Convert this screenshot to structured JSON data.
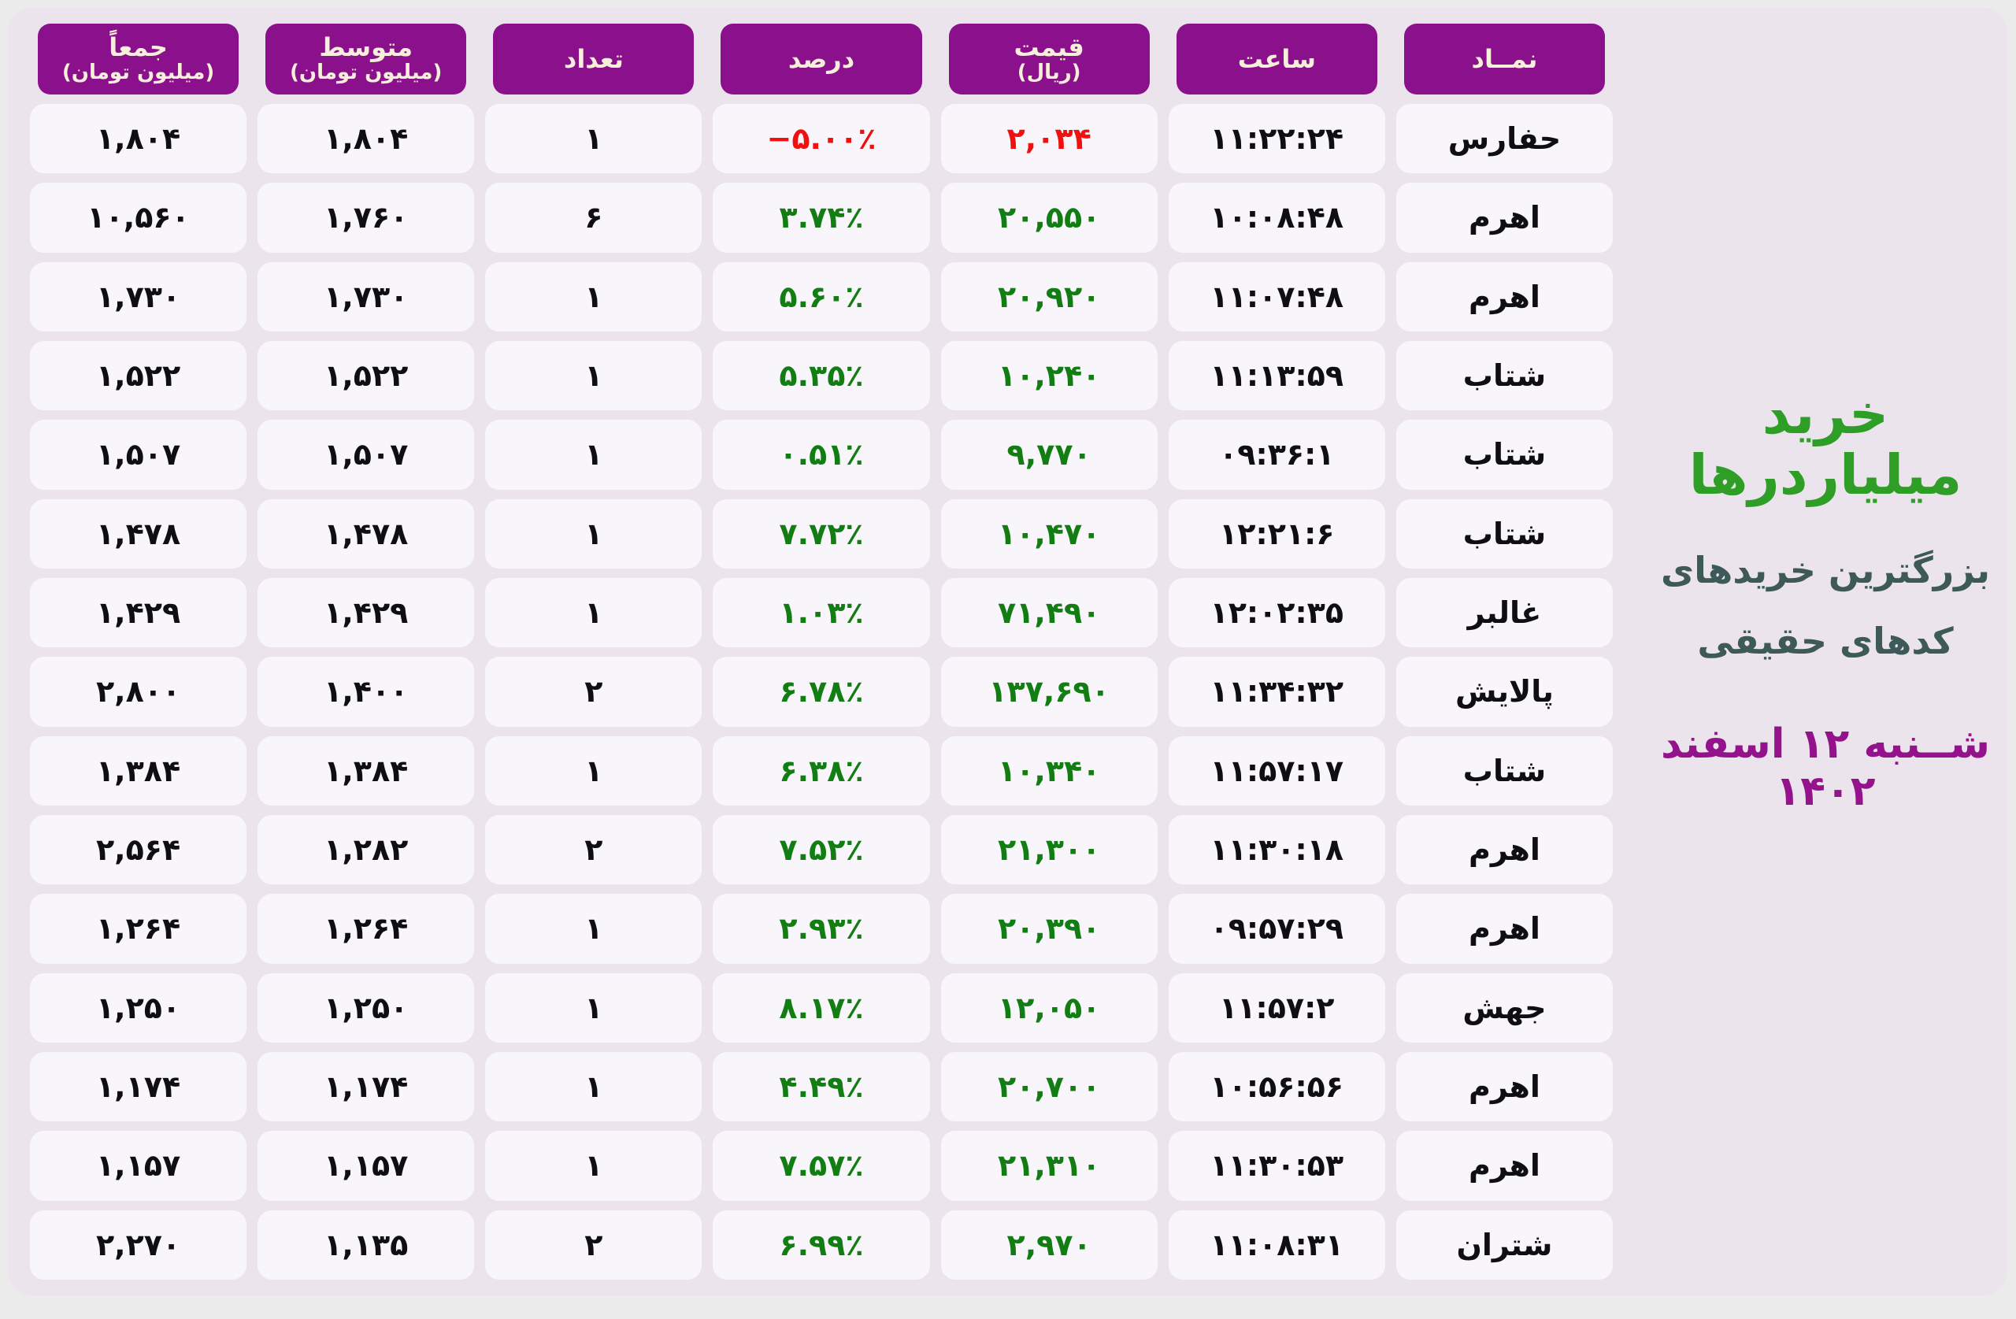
{
  "colors": {
    "page_bg": "#ebebeb",
    "panel_bg": "#ece4ed",
    "header_bg": "#8b108b",
    "header_text": "#f6efd9",
    "cell_bg": "#f8f6fb",
    "text_dark": "#0e0e13",
    "up_color": "#127d12",
    "down_color": "#f01010",
    "title_color": "#2f9e27",
    "subtitle_color": "#3e5a58",
    "date_color": "#94138d"
  },
  "title_panel": {
    "title": "خرید میلیاردرها",
    "subtitle_line1": "بزرگترین خریدهای",
    "subtitle_line2": "کدهای حقیقی",
    "date": "شــنبه ۱۲ اسفند ۱۴۰۲"
  },
  "table": {
    "columns": [
      {
        "label": "نمــاد",
        "sub": ""
      },
      {
        "label": "ساعت",
        "sub": ""
      },
      {
        "label": "قیمت",
        "sub": "(ریال)"
      },
      {
        "label": "درصد",
        "sub": ""
      },
      {
        "label": "تعداد",
        "sub": ""
      },
      {
        "label": "متوسط",
        "sub": "(میلیون تومان)"
      },
      {
        "label": "جمعاً",
        "sub": "(میلیون تومان)"
      }
    ],
    "rows": [
      {
        "symbol": "حفارس",
        "time": "۱۱:۲۲:۲۴",
        "price": "۲,۰۳۴",
        "percent": "−۵.۰۰٪",
        "count": "۱",
        "average": "۱,۸۰۴",
        "total": "۱,۸۰۴",
        "trend": "down"
      },
      {
        "symbol": "اهرم",
        "time": "۱۰:۰۸:۴۸",
        "price": "۲۰,۵۵۰",
        "percent": "۳.۷۴٪",
        "count": "۶",
        "average": "۱,۷۶۰",
        "total": "۱۰,۵۶۰",
        "trend": "up"
      },
      {
        "symbol": "اهرم",
        "time": "۱۱:۰۷:۴۸",
        "price": "۲۰,۹۲۰",
        "percent": "۵.۶۰٪",
        "count": "۱",
        "average": "۱,۷۳۰",
        "total": "۱,۷۳۰",
        "trend": "up"
      },
      {
        "symbol": "شتاب",
        "time": "۱۱:۱۳:۵۹",
        "price": "۱۰,۲۴۰",
        "percent": "۵.۳۵٪",
        "count": "۱",
        "average": "۱,۵۲۲",
        "total": "۱,۵۲۲",
        "trend": "up"
      },
      {
        "symbol": "شتاب",
        "time": "۰۹:۳۶:۱",
        "price": "۹,۷۷۰",
        "percent": "۰.۵۱٪",
        "count": "۱",
        "average": "۱,۵۰۷",
        "total": "۱,۵۰۷",
        "trend": "up"
      },
      {
        "symbol": "شتاب",
        "time": "۱۲:۲۱:۶",
        "price": "۱۰,۴۷۰",
        "percent": "۷.۷۲٪",
        "count": "۱",
        "average": "۱,۴۷۸",
        "total": "۱,۴۷۸",
        "trend": "up"
      },
      {
        "symbol": "غالبر",
        "time": "۱۲:۰۲:۳۵",
        "price": "۷۱,۴۹۰",
        "percent": "۱.۰۳٪",
        "count": "۱",
        "average": "۱,۴۲۹",
        "total": "۱,۴۲۹",
        "trend": "up"
      },
      {
        "symbol": "پالایش",
        "time": "۱۱:۳۴:۳۲",
        "price": "۱۳۷,۶۹۰",
        "percent": "۶.۷۸٪",
        "count": "۲",
        "average": "۱,۴۰۰",
        "total": "۲,۸۰۰",
        "trend": "up"
      },
      {
        "symbol": "شتاب",
        "time": "۱۱:۵۷:۱۷",
        "price": "۱۰,۳۴۰",
        "percent": "۶.۳۸٪",
        "count": "۱",
        "average": "۱,۳۸۴",
        "total": "۱,۳۸۴",
        "trend": "up"
      },
      {
        "symbol": "اهرم",
        "time": "۱۱:۳۰:۱۸",
        "price": "۲۱,۳۰۰",
        "percent": "۷.۵۲٪",
        "count": "۲",
        "average": "۱,۲۸۲",
        "total": "۲,۵۶۴",
        "trend": "up"
      },
      {
        "symbol": "اهرم",
        "time": "۰۹:۵۷:۲۹",
        "price": "۲۰,۳۹۰",
        "percent": "۲.۹۳٪",
        "count": "۱",
        "average": "۱,۲۶۴",
        "total": "۱,۲۶۴",
        "trend": "up"
      },
      {
        "symbol": "جهش",
        "time": "۱۱:۵۷:۲",
        "price": "۱۲,۰۵۰",
        "percent": "۸.۱۷٪",
        "count": "۱",
        "average": "۱,۲۵۰",
        "total": "۱,۲۵۰",
        "trend": "up"
      },
      {
        "symbol": "اهرم",
        "time": "۱۰:۵۶:۵۶",
        "price": "۲۰,۷۰۰",
        "percent": "۴.۴۹٪",
        "count": "۱",
        "average": "۱,۱۷۴",
        "total": "۱,۱۷۴",
        "trend": "up"
      },
      {
        "symbol": "اهرم",
        "time": "۱۱:۳۰:۵۳",
        "price": "۲۱,۳۱۰",
        "percent": "۷.۵۷٪",
        "count": "۱",
        "average": "۱,۱۵۷",
        "total": "۱,۱۵۷",
        "trend": "up"
      },
      {
        "symbol": "شتران",
        "time": "۱۱:۰۸:۳۱",
        "price": "۲,۹۷۰",
        "percent": "۶.۹۹٪",
        "count": "۲",
        "average": "۱,۱۳۵",
        "total": "۲,۲۷۰",
        "trend": "up"
      }
    ]
  },
  "chart_data": {
    "type": "table",
    "title": "خرید میلیاردرها",
    "subtitle": "بزرگترین خریدهای کدهای حقیقی",
    "date": "شنبه ۱۲ اسفند ۱۴۰۲",
    "columns": [
      "نماد",
      "ساعت",
      "قیمت (ریال)",
      "درصد",
      "تعداد",
      "متوسط (میلیون تومان)",
      "جمعاً (میلیون تومان)"
    ],
    "rows": [
      {
        "symbol": "حفارس",
        "time": "11:22:24",
        "price_rial": 2034,
        "percent": -5.0,
        "count": 1,
        "average_mtoman": 1804,
        "total_mtoman": 1804
      },
      {
        "symbol": "اهرم",
        "time": "10:08:48",
        "price_rial": 20550,
        "percent": 3.74,
        "count": 6,
        "average_mtoman": 1760,
        "total_mtoman": 10560
      },
      {
        "symbol": "اهرم",
        "time": "11:07:48",
        "price_rial": 20920,
        "percent": 5.6,
        "count": 1,
        "average_mtoman": 1730,
        "total_mtoman": 1730
      },
      {
        "symbol": "شتاب",
        "time": "11:13:59",
        "price_rial": 10240,
        "percent": 5.35,
        "count": 1,
        "average_mtoman": 1522,
        "total_mtoman": 1522
      },
      {
        "symbol": "شتاب",
        "time": "09:36:1",
        "price_rial": 9770,
        "percent": 0.51,
        "count": 1,
        "average_mtoman": 1507,
        "total_mtoman": 1507
      },
      {
        "symbol": "شتاب",
        "time": "12:21:6",
        "price_rial": 10470,
        "percent": 7.72,
        "count": 1,
        "average_mtoman": 1478,
        "total_mtoman": 1478
      },
      {
        "symbol": "غالبر",
        "time": "12:02:35",
        "price_rial": 71490,
        "percent": 1.03,
        "count": 1,
        "average_mtoman": 1429,
        "total_mtoman": 1429
      },
      {
        "symbol": "پالایش",
        "time": "11:34:32",
        "price_rial": 137690,
        "percent": 6.78,
        "count": 2,
        "average_mtoman": 1400,
        "total_mtoman": 2800
      },
      {
        "symbol": "شتاب",
        "time": "11:57:17",
        "price_rial": 10340,
        "percent": 6.38,
        "count": 1,
        "average_mtoman": 1384,
        "total_mtoman": 1384
      },
      {
        "symbol": "اهرم",
        "time": "11:30:18",
        "price_rial": 21300,
        "percent": 7.52,
        "count": 2,
        "average_mtoman": 1282,
        "total_mtoman": 2564
      },
      {
        "symbol": "اهرم",
        "time": "09:57:29",
        "price_rial": 20390,
        "percent": 2.93,
        "count": 1,
        "average_mtoman": 1264,
        "total_mtoman": 1264
      },
      {
        "symbol": "جهش",
        "time": "11:57:2",
        "price_rial": 12050,
        "percent": 8.17,
        "count": 1,
        "average_mtoman": 1250,
        "total_mtoman": 1250
      },
      {
        "symbol": "اهرم",
        "time": "10:56:56",
        "price_rial": 20700,
        "percent": 4.49,
        "count": 1,
        "average_mtoman": 1174,
        "total_mtoman": 1174
      },
      {
        "symbol": "اهرم",
        "time": "11:30:53",
        "price_rial": 21310,
        "percent": 7.57,
        "count": 1,
        "average_mtoman": 1157,
        "total_mtoman": 1157
      },
      {
        "symbol": "شتران",
        "time": "11:08:31",
        "price_rial": 2970,
        "percent": 6.99,
        "count": 2,
        "average_mtoman": 1135,
        "total_mtoman": 2270
      }
    ]
  }
}
